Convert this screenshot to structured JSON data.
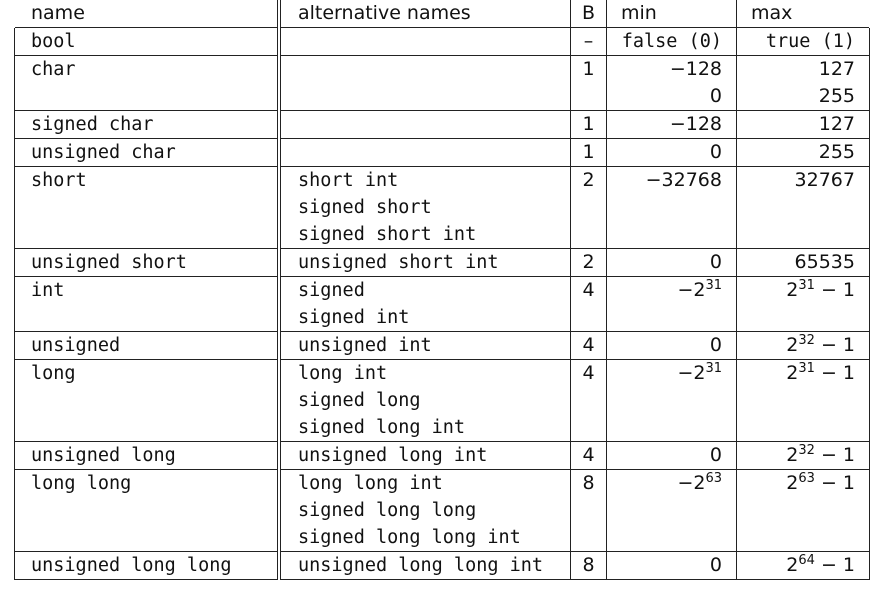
{
  "headers": {
    "name": "name",
    "alt": "alternative names",
    "bytes": "B",
    "min": "min",
    "max": "max"
  },
  "rows": [
    {
      "name": "bool",
      "alts": [],
      "bytes": "–",
      "min": [
        "false (0)"
      ],
      "max": [
        "true (1)"
      ]
    },
    {
      "name": "char",
      "alts": [],
      "bytes": "1",
      "min": [
        "−128",
        "0"
      ],
      "max": [
        "127",
        "255"
      ]
    },
    {
      "name": "signed char",
      "alts": [],
      "bytes": "1",
      "min": [
        "−128"
      ],
      "max": [
        "127"
      ]
    },
    {
      "name": "unsigned char",
      "alts": [],
      "bytes": "1",
      "min": [
        "0"
      ],
      "max": [
        "255"
      ]
    },
    {
      "name": "short",
      "alts": [
        "short int",
        "signed short",
        "signed short int"
      ],
      "bytes": "2",
      "min": [
        "−32768"
      ],
      "max": [
        "32767"
      ]
    },
    {
      "name": "unsigned short",
      "alts": [
        "unsigned short int"
      ],
      "bytes": "2",
      "min": [
        "0"
      ],
      "max": [
        "65535"
      ]
    },
    {
      "name": "int",
      "alts": [
        "signed",
        "signed int"
      ],
      "bytes": "4",
      "min": [
        "−2^31"
      ],
      "max": [
        "2^31 − 1"
      ]
    },
    {
      "name": "unsigned",
      "alts": [
        "unsigned int"
      ],
      "bytes": "4",
      "min": [
        "0"
      ],
      "max": [
        "2^32 − 1"
      ]
    },
    {
      "name": "long",
      "alts": [
        "long int",
        "signed long",
        "signed long int"
      ],
      "bytes": "4",
      "min": [
        "−2^31"
      ],
      "max": [
        "2^31 − 1"
      ]
    },
    {
      "name": "unsigned long",
      "alts": [
        "unsigned long int"
      ],
      "bytes": "4",
      "min": [
        "0"
      ],
      "max": [
        "2^32 − 1"
      ]
    },
    {
      "name": "long long",
      "alts": [
        "long long int",
        "signed long long",
        "signed long long int"
      ],
      "bytes": "8",
      "min": [
        "−2^63"
      ],
      "max": [
        "2^63 − 1"
      ]
    },
    {
      "name": "unsigned long long",
      "alts": [
        "unsigned long long int"
      ],
      "bytes": "8",
      "min": [
        "0"
      ],
      "max": [
        "2^64 − 1"
      ]
    }
  ]
}
